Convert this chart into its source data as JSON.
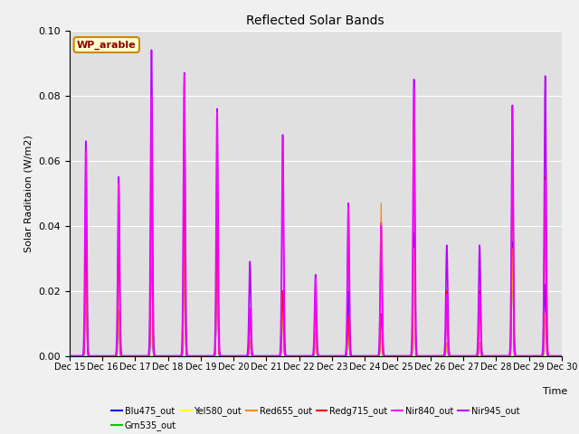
{
  "title": "Reflected Solar Bands",
  "ylabel": "Solar Raditaion (W/m2)",
  "xlabel": "Time",
  "text_label": "WP_arable",
  "ylim": [
    0,
    0.1
  ],
  "series": {
    "Blu475_out": {
      "color": "#0000ff",
      "lw": 0.7
    },
    "Grn535_out": {
      "color": "#00cc00",
      "lw": 0.7
    },
    "Yel580_out": {
      "color": "#ffff00",
      "lw": 0.7
    },
    "Red655_out": {
      "color": "#ff8800",
      "lw": 0.7
    },
    "Redg715_out": {
      "color": "#ff0000",
      "lw": 0.7
    },
    "Nir840_out": {
      "color": "#ff00ff",
      "lw": 1.0
    },
    "Nir945_out": {
      "color": "#bb00ff",
      "lw": 1.2
    }
  },
  "plot_order": [
    "Nir945_out",
    "Blu475_out",
    "Grn535_out",
    "Yel580_out",
    "Red655_out",
    "Redg715_out",
    "Nir840_out"
  ],
  "legend_order": [
    "Blu475_out",
    "Grn535_out",
    "Yel580_out",
    "Red655_out",
    "Redg715_out",
    "Nir840_out",
    "Nir945_out"
  ],
  "tick_labels": [
    "Dec 15",
    "Dec 16",
    "Dec 17",
    "Dec 18",
    "Dec 19",
    "Dec 20",
    "Dec 21",
    "Dec 22",
    "Dec 23",
    "Dec 24",
    "Dec 25",
    "Dec 26",
    "Dec 27",
    "Dec 28",
    "Dec 29",
    "Dec 30"
  ],
  "fig_facecolor": "#f0f0f0",
  "axes_bg_color": "#e0e0e0",
  "nir945_peaks": [
    0.066,
    0.055,
    0.094,
    0.087,
    0.076,
    0.029,
    0.068,
    0.025,
    0.047,
    0.041,
    0.085,
    0.034,
    0.034,
    0.077,
    0.086
  ],
  "nir840_peaks": [
    0.063,
    0.053,
    0.08,
    0.0865,
    0.075,
    0.0145,
    0.067,
    0.024,
    0.046,
    0.04,
    0.082,
    0.019,
    0.019,
    0.076,
    0.054
  ],
  "blu_peaks": [
    0.034,
    0.012,
    0.037,
    0.036,
    0.035,
    0.005,
    0.02,
    0.007,
    0.02,
    0.009,
    0.038,
    0.004,
    0.004,
    0.035,
    0.022
  ],
  "grn_peaks": [
    0.026,
    0.012,
    0.04,
    0.035,
    0.037,
    0.005,
    0.013,
    0.007,
    0.01,
    0.013,
    0.032,
    0.004,
    0.004,
    0.032,
    0.013
  ],
  "yel_peaks": [
    0.026,
    0.014,
    0.052,
    0.036,
    0.04,
    0.005,
    0.014,
    0.007,
    0.01,
    0.009,
    0.033,
    0.004,
    0.004,
    0.033,
    0.013
  ],
  "red655_peaks": [
    0.026,
    0.014,
    0.052,
    0.036,
    0.04,
    0.005,
    0.014,
    0.007,
    0.01,
    0.047,
    0.033,
    0.004,
    0.004,
    0.033,
    0.013
  ],
  "redg715_peaks": [
    0.044,
    0.033,
    0.066,
    0.052,
    0.041,
    0.011,
    0.02,
    0.019,
    0.012,
    0.013,
    0.079,
    0.02,
    0.02,
    0.059,
    0.055
  ]
}
